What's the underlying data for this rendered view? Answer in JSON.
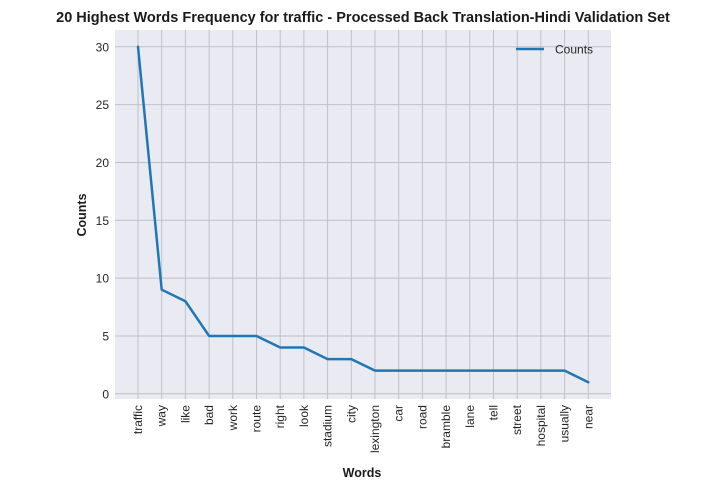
{
  "chart_data": {
    "type": "line",
    "title": "20 Highest Words Frequency for traffic - Processed Back Translation-Hindi Validation Set",
    "xlabel": "Words",
    "ylabel": "Counts",
    "categories": [
      "traffic",
      "way",
      "like",
      "bad",
      "work",
      "route",
      "right",
      "look",
      "stadium",
      "city",
      "lexington",
      "car",
      "road",
      "bramble",
      "lane",
      "tell",
      "street",
      "hospital",
      "usually",
      "near"
    ],
    "series": [
      {
        "name": "Counts",
        "values": [
          30,
          9,
          8,
          5,
          5,
          5,
          4,
          4,
          3,
          3,
          2,
          2,
          2,
          2,
          2,
          2,
          2,
          2,
          2,
          1
        ]
      }
    ],
    "ylim": [
      -0.45,
      31.45
    ],
    "yticks": [
      0,
      5,
      10,
      15,
      20,
      25,
      30
    ],
    "grid": true,
    "legend_position": "upper right",
    "colors": {
      "line": "#1f77b4",
      "background": "#eaeaf2",
      "grid": "#c0c0c8"
    }
  }
}
